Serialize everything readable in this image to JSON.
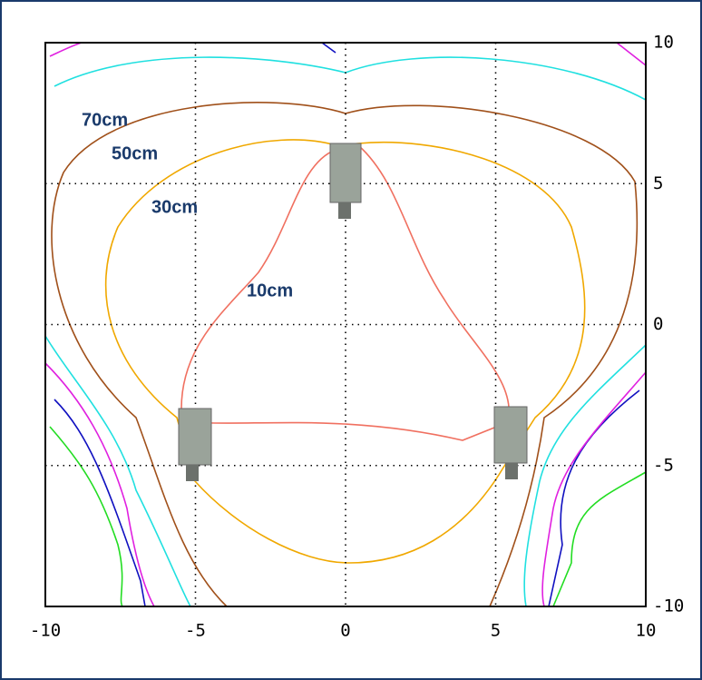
{
  "chart_data": {
    "type": "contour",
    "xlim": [
      -10,
      10
    ],
    "ylim": [
      -10,
      10
    ],
    "xticks": [
      -10,
      -5,
      0,
      5,
      10
    ],
    "yticks": [
      -10,
      -5,
      0,
      5,
      10
    ],
    "grid": true,
    "labels": [
      "70cm",
      "50cm",
      "30cm",
      "10cm"
    ]
  }
}
